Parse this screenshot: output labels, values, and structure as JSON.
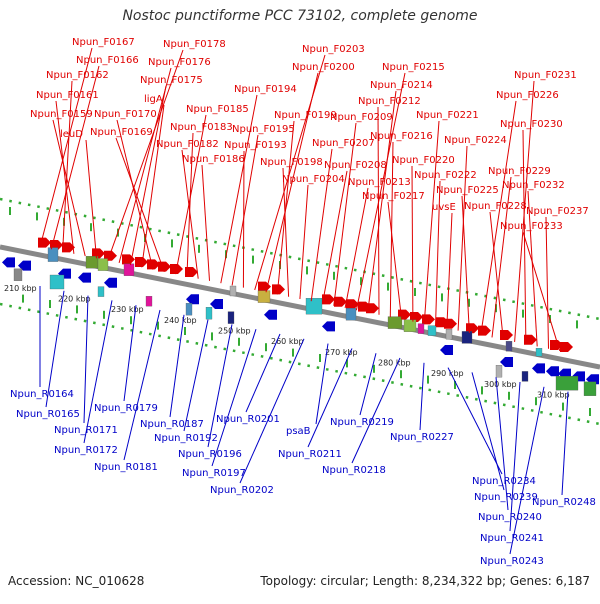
{
  "title": "Nostoc punctiforme PCC 73102, complete genome",
  "footer": {
    "accession": "Accession: NC_010628",
    "summary": "Topology: circular; Length: 8,234,322 bp; Genes: 6,187"
  },
  "colors": {
    "forward": "#e00000",
    "reverse": "#0000c8",
    "backbone": "#888888",
    "tick": "#33aa33"
  },
  "kbp_ticks": [
    "210 kbp",
    "220 kbp",
    "230 kbp",
    "240 kbp",
    "250 kbp",
    "260 kbp",
    "270 kbp",
    "280 kbp",
    "290 kbp",
    "300 kbp",
    "310 kbp"
  ],
  "forward_labels": [
    "Npun_F0167",
    "Npun_F0166",
    "Npun_F0162",
    "Npun_F0161",
    "Npun_F0159",
    "leuD",
    "Npun_F0178",
    "Npun_F0176",
    "Npun_F0175",
    "ligA",
    "Npun_F0170",
    "Npun_F0169",
    "Npun_F0185",
    "Npun_F0183",
    "Npun_F0182",
    "Npun_F0186",
    "Npun_F0194",
    "Npun_F0195",
    "Npun_F0193",
    "Npun_F0203",
    "Npun_F0200",
    "Npun_F0199",
    "Npun_F0198",
    "Npun_F0204",
    "Npun_F0207",
    "Npun_F0208",
    "Npun_F0209",
    "Npun_F0213",
    "Npun_F0215",
    "Npun_F0214",
    "Npun_F0212",
    "Npun_F0216",
    "Npun_F0217",
    "Npun_F0220",
    "Npun_F0221",
    "Npun_F0222",
    "uvsE",
    "Npun_F0224",
    "Npun_F0225",
    "Npun_F0226",
    "Npun_F0229",
    "Npun_F0228",
    "Npun_F0231",
    "Npun_F0230",
    "Npun_F0232",
    "Npun_F0237",
    "Npun_F0233"
  ],
  "reverse_labels": [
    "Npun_R0164",
    "Npun_R0165",
    "Npun_R0171",
    "Npun_R0172",
    "Npun_R0179",
    "Npun_R0181",
    "Npun_R0187",
    "Npun_R0192",
    "Npun_R0196",
    "Npun_R0197",
    "Npun_R0201",
    "Npun_R0202",
    "psaB",
    "Npun_R0211",
    "Npun_R0219",
    "Npun_R0218",
    "Npun_R0227",
    "Npun_R0234",
    "Npun_R0239",
    "Npun_R0240",
    "Npun_R0241",
    "Npun_R0243",
    "Npun_R0248"
  ]
}
